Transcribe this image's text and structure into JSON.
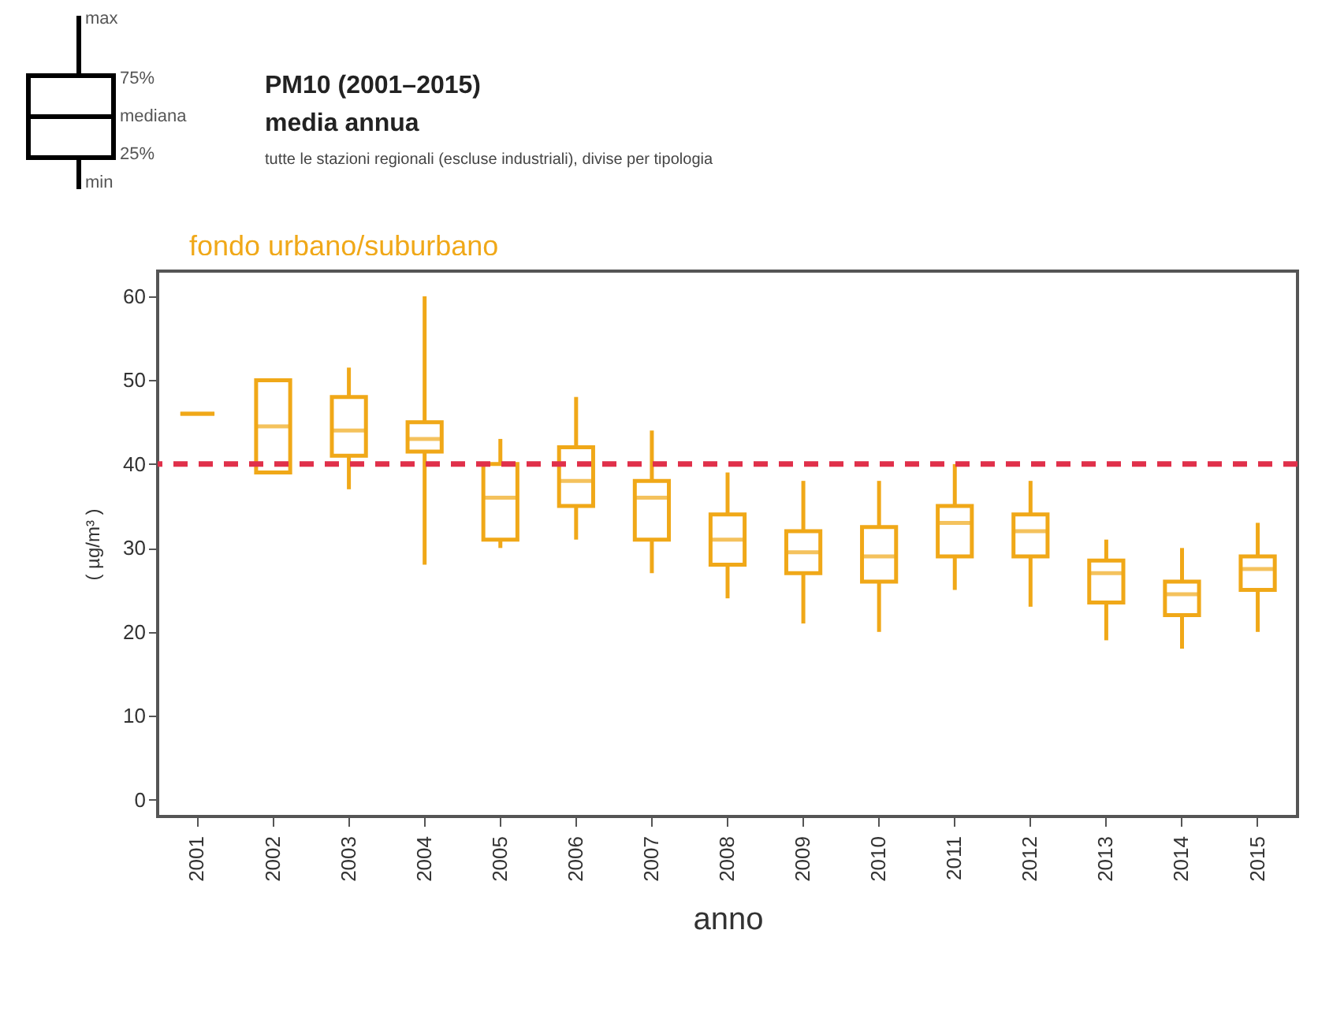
{
  "chart_data": {
    "type": "box",
    "title": "PM10 (2001–2015)",
    "subtitle": "media annua",
    "annotations": [
      "max",
      "75%",
      "mediana",
      "25%",
      "min",
      "tutte le stazioni regionali (escluse industriali), divise per tipologia"
    ],
    "xlabel": "anno",
    "ylabel": "( µg/m³ )",
    "categories": [
      "2001",
      "2002",
      "2003",
      "2004",
      "2005",
      "2006",
      "2007",
      "2008",
      "2009",
      "2010",
      "2011",
      "2012",
      "2013",
      "2014",
      "2015"
    ],
    "ylim": [
      -2,
      63
    ],
    "yticks": [
      0,
      10,
      20,
      30,
      40,
      50,
      60
    ],
    "grid": false,
    "ref_lines": [
      {
        "axis": "y",
        "value": 40,
        "color": "#e0304a",
        "line_style": "dashed"
      }
    ],
    "series": [
      {
        "name": "fondo urbano/suburbano",
        "color": "#f0a818",
        "boxes": [
          {
            "low": 46,
            "q1": 46,
            "median": 46,
            "q3": 46,
            "high": 46
          },
          {
            "low": 39,
            "q1": 39,
            "median": 44.5,
            "q3": 50,
            "high": 50
          },
          {
            "low": 37,
            "q1": 41,
            "median": 44,
            "q3": 48,
            "high": 51.5
          },
          {
            "low": 28,
            "q1": 41.5,
            "median": 43,
            "q3": 45,
            "high": 60
          },
          {
            "low": 30,
            "q1": 31,
            "median": 36,
            "q3": 40,
            "high": 43
          },
          {
            "low": 31,
            "q1": 35,
            "median": 38,
            "q3": 42,
            "high": 48
          },
          {
            "low": 27,
            "q1": 31,
            "median": 36,
            "q3": 38,
            "high": 44
          },
          {
            "low": 24,
            "q1": 28,
            "median": 31,
            "q3": 34,
            "high": 39
          },
          {
            "low": 21,
            "q1": 27,
            "median": 29.5,
            "q3": 32,
            "high": 38
          },
          {
            "low": 20,
            "q1": 26,
            "median": 29,
            "q3": 32.5,
            "high": 38
          },
          {
            "low": 25,
            "q1": 29,
            "median": 33,
            "q3": 35,
            "high": 40
          },
          {
            "low": 23,
            "q1": 29,
            "median": 32,
            "q3": 34,
            "high": 38
          },
          {
            "low": 19,
            "q1": 23.5,
            "median": 27,
            "q3": 28.5,
            "high": 31
          },
          {
            "low": 18,
            "q1": 22,
            "median": 24.5,
            "q3": 26,
            "high": 30
          },
          {
            "low": 20,
            "q1": 25,
            "median": 27.5,
            "q3": 29,
            "high": 33
          }
        ]
      }
    ]
  }
}
